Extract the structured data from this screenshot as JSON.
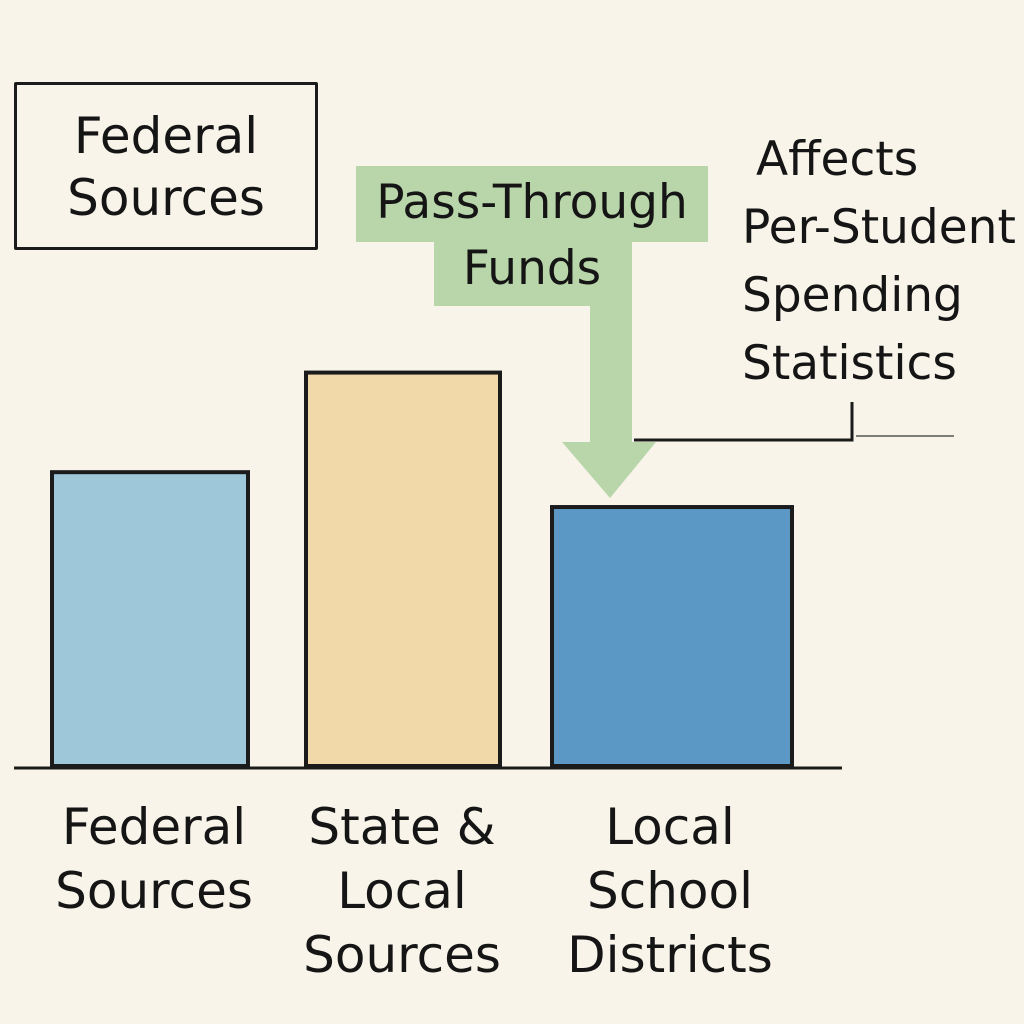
{
  "chart_data": {
    "type": "bar",
    "categories": [
      "Federal Sources",
      "State & Local Sources",
      "Local School Districts"
    ],
    "category_label_lines": [
      [
        "Federal",
        "Sources"
      ],
      [
        "State &",
        "Local",
        "Sources"
      ],
      [
        "Local",
        "School",
        "Districts"
      ]
    ],
    "values": [
      59,
      79,
      52
    ],
    "ylim": [
      0,
      100
    ],
    "colors": [
      "#9ec7da",
      "#f1d9a9",
      "#5c98c6"
    ],
    "axis_color": "#1b1b1b",
    "grid": false,
    "annotations": {
      "box_label_lines": [
        "Federal",
        "Sources"
      ],
      "callout_lines": [
        "Pass-Through",
        "Funds"
      ],
      "callout_color": "#b9d5aa",
      "callout_target_category": "Local School Districts",
      "note_lines": [
        "Affects",
        "Per-Student",
        "Spending",
        "Statistics"
      ]
    }
  }
}
